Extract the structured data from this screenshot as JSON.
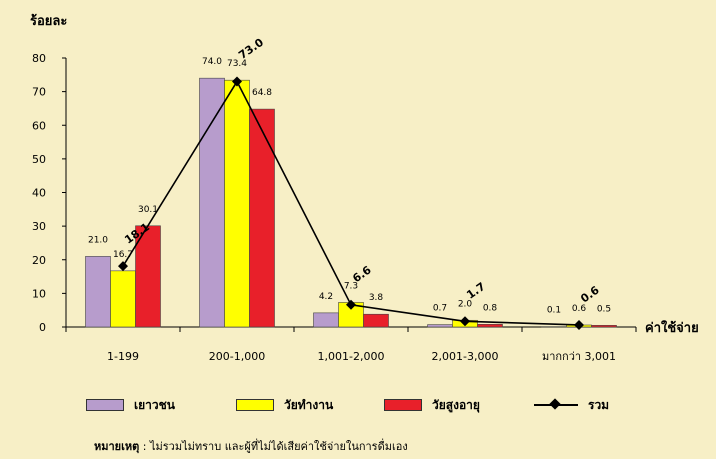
{
  "y_axis_title": "ร้อยละ",
  "x_axis_title": "ค่าใช้จ่าย",
  "note_prefix": "หมายเหตุ",
  "note_text": " : ไม่รวมไม่ทราบ และผู้ที่ไม่ได้เสียค่าใช้จ่ายในการดื่มเอง",
  "colors": {
    "background": "#f7efc6",
    "youth": "#b79ccc",
    "working": "#ffff00",
    "elderly": "#e8202a",
    "total": "#000000"
  },
  "chart_data": {
    "type": "bar",
    "categories": [
      "1-199",
      "200-1,000",
      "1,001-2,000",
      "2,001-3,000",
      "มากกว่า 3,001"
    ],
    "ylabel": "ร้อยละ",
    "xlabel": "ค่าใช้จ่าย",
    "ylim": [
      0,
      80
    ],
    "yticks": [
      0,
      10,
      20,
      30,
      40,
      50,
      60,
      70,
      80
    ],
    "grid": false,
    "legend_position": "bottom",
    "series": [
      {
        "name": "เยาวชน",
        "type": "bar",
        "color": "#b79ccc",
        "values": [
          21.0,
          74.0,
          4.2,
          0.7,
          0.1
        ],
        "labels": [
          "21.0",
          "74.0",
          "4.2",
          "0.7",
          "0.1"
        ]
      },
      {
        "name": "วัยทำงาน",
        "type": "bar",
        "color": "#ffff00",
        "values": [
          16.7,
          73.4,
          7.3,
          2.0,
          0.6
        ],
        "labels": [
          "16.7",
          "73.4",
          "7.3",
          "2.0",
          "0.6"
        ]
      },
      {
        "name": "วัยสูงอายุ",
        "type": "bar",
        "color": "#e8202a",
        "values": [
          30.1,
          64.8,
          3.8,
          0.8,
          0.5
        ],
        "labels": [
          "30.1",
          "64.8",
          "3.8",
          "0.8",
          "0.5"
        ]
      },
      {
        "name": "รวม",
        "type": "line",
        "color": "#000000",
        "values": [
          18.1,
          73.0,
          6.6,
          1.7,
          0.6
        ],
        "labels": [
          "18.1",
          "73.0",
          "6.6",
          "1.7",
          "0.6"
        ]
      }
    ]
  }
}
